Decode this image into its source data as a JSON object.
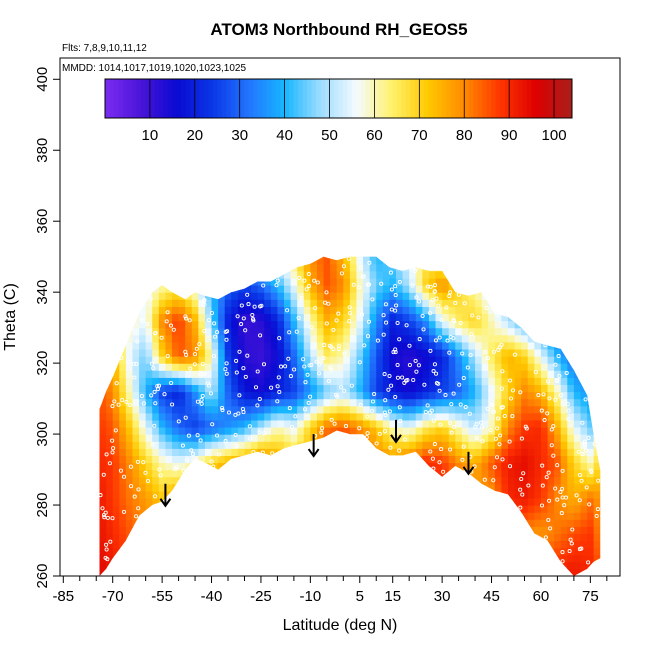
{
  "chart_data": {
    "type": "heatmap",
    "title": "ATOM3 Northbound RH_GEOS5",
    "annotations": {
      "flights": "Flts: 7,8,9,10,11,12",
      "dates": "MMDD: 1014,1017,1019,1020,1023,1025"
    },
    "xlabel": "Latitude (deg N)",
    "ylabel": "Theta (C)",
    "xlim": [
      -86,
      84
    ],
    "ylim": [
      260,
      406
    ],
    "x_ticks": [
      -85,
      -70,
      -55,
      -40,
      -25,
      -10,
      5,
      15,
      30,
      45,
      60,
      75
    ],
    "x_minor_ticks": [
      -80,
      -75,
      -65,
      -60,
      -50,
      -45,
      -35,
      -30,
      -20,
      -15,
      -5,
      0,
      10,
      20,
      25,
      35,
      40,
      50,
      55,
      65,
      70,
      80
    ],
    "y_ticks": [
      260,
      280,
      300,
      320,
      340,
      360,
      380,
      400
    ],
    "colorbar": {
      "min": 0,
      "max": 104,
      "ticks": [
        10,
        20,
        30,
        40,
        50,
        60,
        70,
        80,
        90,
        100
      ],
      "colors": [
        "#7b2cf0",
        "#4a14d8",
        "#0a0ad2",
        "#0a37e6",
        "#2375ff",
        "#17b6ff",
        "#9ddcff",
        "#f4fbff",
        "#fff16a",
        "#ffc800",
        "#ff8a00",
        "#ff3500",
        "#dd0000",
        "#a8201c"
      ]
    },
    "envelope": {
      "lat": [
        -74,
        -72,
        -70,
        -66,
        -62,
        -58,
        -55,
        -52,
        -48,
        -45,
        -42,
        -38,
        -34,
        -30,
        -26,
        -22,
        -18,
        -14,
        -10,
        -6,
        -2,
        2,
        6,
        10,
        14,
        18,
        22,
        26,
        30,
        34,
        38,
        42,
        46,
        50,
        54,
        58,
        62,
        66,
        70,
        74,
        76,
        78
      ],
      "top": [
        307,
        312,
        316,
        325,
        334,
        340,
        342,
        340,
        338,
        340,
        339,
        338,
        340,
        341,
        343,
        343,
        345,
        347,
        348,
        350,
        349,
        350,
        350,
        350,
        347,
        346,
        347,
        346,
        346,
        340,
        339,
        340,
        334,
        333,
        330,
        326,
        325,
        324,
        318,
        311,
        300,
        290
      ],
      "bottom": [
        260,
        262,
        265,
        270,
        277,
        280,
        281,
        284,
        290,
        293,
        292,
        290,
        293,
        294,
        295,
        294,
        296,
        297,
        298,
        299,
        301,
        300,
        300,
        296,
        294,
        294,
        295,
        291,
        288,
        291,
        289,
        286,
        284,
        283,
        278,
        272,
        270,
        264,
        260,
        262,
        264,
        265
      ]
    },
    "rh_field": {
      "x": [
        -74,
        -70,
        -65,
        -60,
        -55,
        -50,
        -45,
        -40,
        -35,
        -30,
        -25,
        -20,
        -15,
        -10,
        -5,
        0,
        5,
        10,
        15,
        20,
        25,
        30,
        35,
        40,
        45,
        50,
        55,
        60,
        65,
        70,
        75,
        78
      ],
      "y": [
        262,
        272,
        282,
        292,
        302,
        312,
        322,
        332,
        342,
        350
      ],
      "z": [
        [
          95,
          92,
          88,
          85,
          80,
          78,
          75,
          72,
          70,
          68,
          66,
          64,
          62,
          60,
          60,
          62,
          64,
          66,
          68,
          70,
          72,
          74,
          76,
          78,
          80,
          82,
          85,
          88,
          90,
          92,
          90,
          85
        ],
        [
          93,
          90,
          85,
          80,
          76,
          74,
          78,
          80,
          82,
          80,
          78,
          75,
          72,
          70,
          72,
          74,
          76,
          78,
          80,
          82,
          84,
          86,
          88,
          86,
          84,
          82,
          80,
          78,
          82,
          86,
          88,
          80
        ],
        [
          92,
          88,
          82,
          78,
          72,
          80,
          85,
          82,
          85,
          80,
          75,
          78,
          80,
          82,
          85,
          88,
          86,
          84,
          82,
          85,
          88,
          90,
          85,
          80,
          78,
          90,
          92,
          88,
          80,
          75,
          82,
          78
        ],
        [
          90,
          88,
          80,
          70,
          60,
          55,
          60,
          70,
          75,
          80,
          85,
          78,
          72,
          75,
          88,
          90,
          88,
          82,
          80,
          85,
          90,
          88,
          80,
          75,
          85,
          92,
          94,
          90,
          85,
          70,
          60,
          70
        ],
        [
          88,
          85,
          72,
          55,
          40,
          30,
          25,
          30,
          35,
          40,
          50,
          60,
          55,
          70,
          82,
          85,
          80,
          72,
          60,
          55,
          65,
          70,
          60,
          50,
          60,
          80,
          88,
          90,
          75,
          55,
          45,
          60
        ],
        [
          85,
          80,
          60,
          40,
          25,
          20,
          35,
          50,
          30,
          18,
          15,
          20,
          25,
          35,
          45,
          50,
          40,
          25,
          18,
          15,
          20,
          25,
          30,
          40,
          55,
          70,
          80,
          75,
          60,
          40,
          35,
          50
        ],
        [
          80,
          75,
          55,
          45,
          70,
          85,
          80,
          60,
          25,
          12,
          10,
          15,
          30,
          50,
          65,
          60,
          45,
          28,
          15,
          12,
          15,
          20,
          35,
          50,
          65,
          75,
          70,
          55,
          40,
          30,
          40,
          45
        ],
        [
          75,
          70,
          60,
          55,
          80,
          88,
          75,
          45,
          20,
          10,
          12,
          20,
          40,
          60,
          75,
          70,
          55,
          35,
          20,
          25,
          35,
          55,
          65,
          70,
          60,
          50,
          40,
          35,
          30,
          35,
          40,
          45
        ],
        [
          70,
          65,
          60,
          55,
          60,
          65,
          55,
          40,
          30,
          25,
          30,
          40,
          55,
          75,
          85,
          80,
          60,
          45,
          40,
          50,
          70,
          80,
          70,
          60,
          50,
          45,
          40,
          38,
          35,
          35,
          40,
          45
        ],
        [
          65,
          60,
          55,
          50,
          50,
          50,
          45,
          40,
          38,
          40,
          45,
          55,
          65,
          80,
          85,
          75,
          55,
          40,
          45,
          55,
          65,
          60,
          55,
          50,
          45,
          42,
          40,
          38,
          35,
          35,
          40,
          45
        ]
      ]
    },
    "arrows": [
      {
        "lat": -54,
        "theta": 286
      },
      {
        "lat": -9,
        "theta": 300
      },
      {
        "lat": 16,
        "theta": 304
      },
      {
        "lat": 38,
        "theta": 295
      }
    ]
  }
}
